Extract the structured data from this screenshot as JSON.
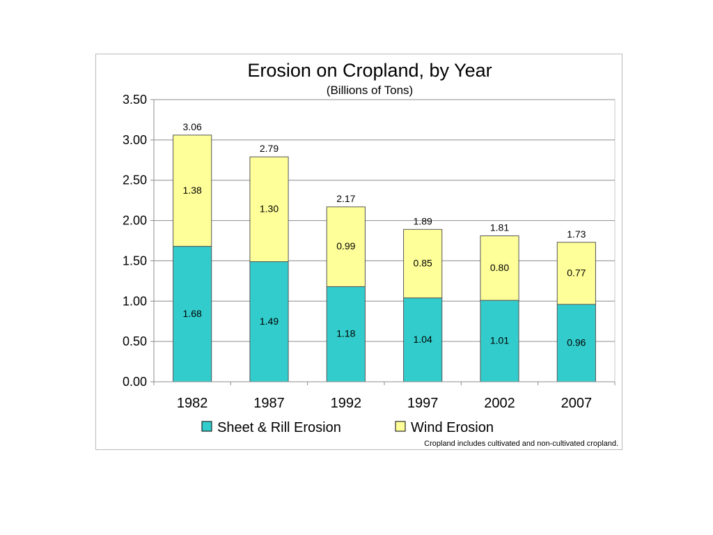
{
  "chart_data": {
    "type": "bar",
    "stacked": true,
    "title": "Erosion on Cropland, by Year",
    "subtitle": "(Billions of Tons)",
    "categories": [
      "1982",
      "1987",
      "1992",
      "1997",
      "2002",
      "2007"
    ],
    "series": [
      {
        "name": "Sheet & Rill Erosion",
        "color": "#33cccc",
        "values": [
          1.68,
          1.49,
          1.18,
          1.04,
          1.01,
          0.96
        ],
        "labels": [
          "1.68",
          "1.49",
          "1.18",
          "1.04",
          "1.01",
          "0.96"
        ]
      },
      {
        "name": "Wind Erosion",
        "color": "#ffff99",
        "values": [
          1.38,
          1.3,
          0.99,
          0.85,
          0.8,
          0.77
        ],
        "labels": [
          "1.38",
          "1.30",
          "0.99",
          "0.85",
          "0.80",
          "0.77"
        ]
      }
    ],
    "totals": [
      "3.06",
      "2.79",
      "2.17",
      "1.89",
      "1.81",
      "1.73"
    ],
    "ylim": [
      0,
      3.5
    ],
    "yticks": [
      "0.00",
      "0.50",
      "1.00",
      "1.50",
      "2.00",
      "2.50",
      "3.00",
      "3.50"
    ],
    "grid": true,
    "legend_position": "bottom",
    "note": "Cropland includes cultivated and non-cultivated cropland."
  }
}
